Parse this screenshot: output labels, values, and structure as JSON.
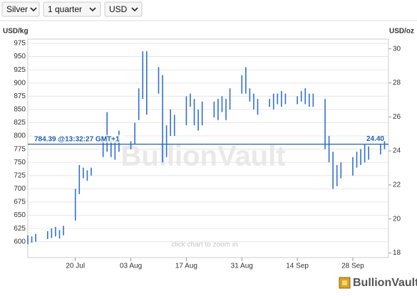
{
  "controls": [
    "Silver",
    "1 quarter",
    "USD"
  ],
  "chart_data": {
    "type": "ohlc",
    "y_label": "USD/kg",
    "y2_label": "USD/oz",
    "watermark": "BullionVault",
    "note": "click chart to zoom in",
    "color": "#2f6fd6",
    "grid": true,
    "x": [
      "08 Jul",
      "09 Jul",
      "10 Jul",
      "13 Jul",
      "14 Jul",
      "15 Jul",
      "16 Jul",
      "17 Jul",
      "20 Jul",
      "21 Jul",
      "22 Jul",
      "23 Jul",
      "24 Jul",
      "27 Jul",
      "28 Jul",
      "29 Jul",
      "30 Jul",
      "31 Jul",
      "03 Aug",
      "04 Aug",
      "05 Aug",
      "06 Aug",
      "07 Aug",
      "10 Aug",
      "11 Aug",
      "12 Aug",
      "13 Aug",
      "14 Aug",
      "17 Aug",
      "18 Aug",
      "19 Aug",
      "20 Aug",
      "21 Aug",
      "24 Aug",
      "25 Aug",
      "26 Aug",
      "27 Aug",
      "28 Aug",
      "31 Aug",
      "01 Sep",
      "02 Sep",
      "03 Sep",
      "04 Sep",
      "07 Sep",
      "08 Sep",
      "09 Sep",
      "10 Sep",
      "11 Sep",
      "14 Sep",
      "15 Sep",
      "16 Sep",
      "17 Sep",
      "18 Sep",
      "21 Sep",
      "22 Sep",
      "23 Sep",
      "24 Sep",
      "25 Sep",
      "28 Sep",
      "29 Sep",
      "30 Sep",
      "01 Oct",
      "02 Oct",
      "05 Oct",
      "06 Oct"
    ],
    "high": [
      612,
      610,
      615,
      620,
      625,
      628,
      622,
      630,
      700,
      745,
      740,
      735,
      740,
      800,
      845,
      800,
      790,
      810,
      790,
      825,
      890,
      960,
      960,
      930,
      915,
      820,
      850,
      840,
      875,
      880,
      870,
      850,
      865,
      865,
      870,
      875,
      870,
      890,
      915,
      930,
      890,
      880,
      870,
      870,
      880,
      880,
      885,
      880,
      875,
      885,
      890,
      880,
      880,
      870,
      800,
      770,
      745,
      750,
      760,
      770,
      775,
      785,
      780,
      785,
      790
    ],
    "low": [
      595,
      598,
      600,
      605,
      607,
      610,
      606,
      612,
      640,
      690,
      720,
      715,
      725,
      760,
      770,
      760,
      755,
      770,
      775,
      785,
      830,
      870,
      840,
      880,
      750,
      760,
      800,
      800,
      820,
      855,
      820,
      810,
      820,
      835,
      830,
      845,
      830,
      850,
      880,
      880,
      865,
      850,
      840,
      855,
      850,
      860,
      855,
      860,
      860,
      865,
      860,
      855,
      855,
      775,
      750,
      700,
      705,
      720,
      725,
      740,
      745,
      750,
      755,
      765,
      775
    ],
    "xlim": [
      "08 Jul",
      "07 Oct"
    ],
    "xticks": [
      "20 Jul",
      "03 Aug",
      "17 Aug",
      "31 Aug",
      "14 Sep",
      "28 Sep"
    ],
    "ylim": [
      570,
      983
    ],
    "yticks": [
      600,
      625,
      650,
      675,
      700,
      725,
      750,
      775,
      800,
      825,
      850,
      875,
      900,
      925,
      950,
      975
    ],
    "y2lim": [
      17.73,
      30.57
    ],
    "y2ticks": [
      18,
      20,
      22,
      24,
      26,
      28,
      30
    ],
    "reference_line": {
      "value": 784.39,
      "label": "784.39 @13:32:27 GMT+1",
      "y2_value": 24.4,
      "y2_label": "24.40"
    },
    "logo": "BullionVault"
  }
}
